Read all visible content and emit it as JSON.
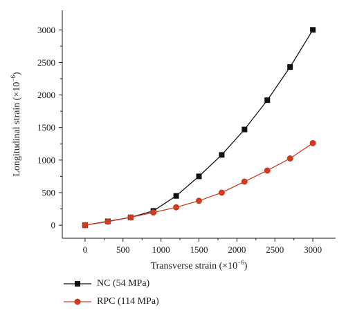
{
  "chart_data": {
    "type": "line",
    "xlabel": "Transverse strain (×10",
    "xlabel_exp": "−6",
    "xlabel_close": ")",
    "ylabel": "Longitudinal strain (×10",
    "ylabel_exp": "−6",
    "ylabel_close": ")",
    "xlim": [
      -300,
      3300
    ],
    "ylim": [
      -200,
      3300
    ],
    "x_ticks": [
      0,
      500,
      1000,
      1500,
      2000,
      2500,
      3000
    ],
    "y_ticks": [
      0,
      500,
      1000,
      1500,
      2000,
      2500,
      3000
    ],
    "grid": false,
    "legend_position": "below",
    "series": [
      {
        "name": "NC (54 MPa)",
        "color": "#111111",
        "marker": "square",
        "x": [
          0,
          300,
          600,
          900,
          1200,
          1500,
          1800,
          2100,
          2400,
          2700,
          3000
        ],
        "y": [
          0,
          60,
          120,
          220,
          450,
          750,
          1080,
          1470,
          1920,
          2430,
          3000
        ]
      },
      {
        "name": "RPC (114 MPa)",
        "color": "#d13a22",
        "marker": "circle",
        "x": [
          0,
          300,
          600,
          900,
          1200,
          1500,
          1800,
          2100,
          2400,
          2700,
          3000
        ],
        "y": [
          0,
          55,
          120,
          195,
          275,
          375,
          500,
          670,
          840,
          1025,
          1260
        ]
      }
    ]
  }
}
